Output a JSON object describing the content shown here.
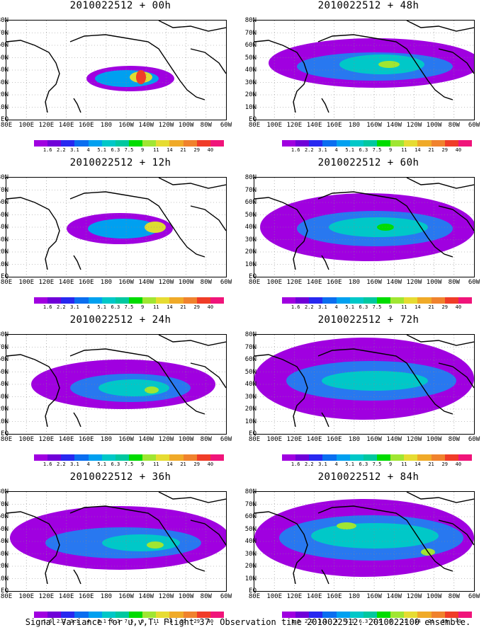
{
  "panels": [
    {
      "title": "2010022512 + 00h"
    },
    {
      "title": "2010022512 + 48h"
    },
    {
      "title": "2010022512 + 12h"
    },
    {
      "title": "2010022512 + 60h"
    },
    {
      "title": "2010022512 + 24h"
    },
    {
      "title": "2010022512 + 72h"
    },
    {
      "title": "2010022512 + 36h"
    },
    {
      "title": "2010022512 + 84h"
    }
  ],
  "lat_labels": [
    "80N",
    "70N",
    "60N",
    "50N",
    "40N",
    "30N",
    "20N",
    "10N",
    "EQ"
  ],
  "lon_labels": [
    "80E",
    "100E",
    "120E",
    "140E",
    "160E",
    "180",
    "160W",
    "140W",
    "120W",
    "100W",
    "80W",
    "60W"
  ],
  "colorbar_labels": [
    "1.6",
    "2.2",
    "3.1",
    "4",
    "5.1",
    "6.3",
    "7.5",
    "9",
    "11",
    "14",
    "21",
    "29",
    "40"
  ],
  "colorbar_colors": [
    "#a000e0",
    "#7000d8",
    "#2828f0",
    "#0a6ef0",
    "#00a0f0",
    "#00c8c8",
    "#00c8a0",
    "#00dc00",
    "#a0e632",
    "#e6dc32",
    "#f0aa28",
    "#f0822d",
    "#f03c28",
    "#f0147a"
  ],
  "caption": "Signal Variance for u,v,T. Flight 37. Observation time 2010022512. 2010022100 ensemble."
}
